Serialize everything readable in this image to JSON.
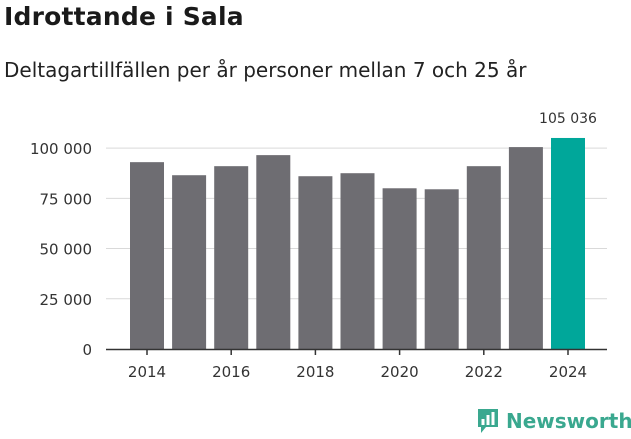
{
  "colors": {
    "bar": "#6e6d72",
    "highlight": "#00a79a",
    "grid": "#d9d9d9",
    "axis": "#333333",
    "text": "#333333"
  },
  "brand": {
    "name": "Newsworthy",
    "color": "#3aa88f",
    "icon": "bar-chart-speech-icon"
  },
  "chart_data": {
    "type": "bar",
    "title": "Idrottande i Sala",
    "subtitle": "Deltagartillfällen per år personer mellan 7 och 25 år",
    "xlabel": "",
    "ylabel": "",
    "categories": [
      "2014",
      "2015",
      "2016",
      "2017",
      "2018",
      "2019",
      "2020",
      "2021",
      "2022",
      "2023",
      "2024"
    ],
    "values": [
      93000,
      86500,
      91000,
      96500,
      86000,
      87500,
      80000,
      79500,
      91000,
      100500,
      105036
    ],
    "highlight_index": 10,
    "highlight_label": "105 036",
    "ylim": [
      0,
      110000
    ],
    "yticks": [
      0,
      25000,
      50000,
      75000,
      100000
    ],
    "ytick_labels": [
      "0",
      "25 000",
      "50 000",
      "75 000",
      "100 000"
    ],
    "xticks": [
      "2014",
      "2016",
      "2018",
      "2020",
      "2022",
      "2024"
    ],
    "grid": true,
    "legend": "none"
  }
}
